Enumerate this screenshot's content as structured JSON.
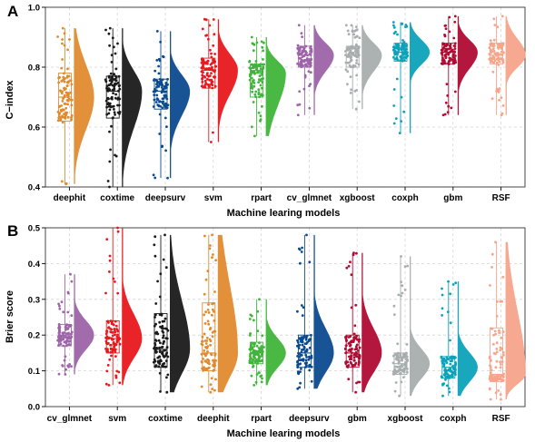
{
  "chart_data": [
    {
      "type": "raincloud",
      "panel_label": "A",
      "xlabel": "Machine learing models",
      "ylabel": "C−index",
      "ylim": [
        0.4,
        1.0
      ],
      "yticks": [
        0.4,
        0.6,
        0.8,
        1.0
      ],
      "ytick_labels": [
        "0.4",
        "0.6",
        "0.8",
        "1.0"
      ],
      "grid": true,
      "categories": [
        "deephit",
        "coxtime",
        "deepsurv",
        "svm",
        "rpart",
        "cv_glmnet",
        "xgboost",
        "coxph",
        "gbm",
        "RSF"
      ],
      "colors": [
        "#E08A2E",
        "#1A1A1A",
        "#0B4A8F",
        "#E8181E",
        "#3FB53A",
        "#9D64A8",
        "#A8ADAE",
        "#0CA2B9",
        "#B00B33",
        "#F6A48A"
      ],
      "series": [
        {
          "category": "deephit",
          "min": 0.41,
          "q1": 0.62,
          "median": 0.7,
          "q3": 0.78,
          "max": 0.93
        },
        {
          "category": "coxtime",
          "min": 0.4,
          "q1": 0.63,
          "median": 0.72,
          "q3": 0.77,
          "max": 0.93
        },
        {
          "category": "deepsurv",
          "min": 0.43,
          "q1": 0.66,
          "median": 0.72,
          "q3": 0.76,
          "max": 0.92
        },
        {
          "category": "svm",
          "min": 0.55,
          "q1": 0.73,
          "median": 0.79,
          "q3": 0.83,
          "max": 0.96
        },
        {
          "category": "rpart",
          "min": 0.57,
          "q1": 0.7,
          "median": 0.78,
          "q3": 0.81,
          "max": 0.9
        },
        {
          "category": "cv_glmnet",
          "min": 0.64,
          "q1": 0.8,
          "median": 0.84,
          "q3": 0.87,
          "max": 0.94
        },
        {
          "category": "xgboost",
          "min": 0.66,
          "q1": 0.8,
          "median": 0.84,
          "q3": 0.87,
          "max": 0.94
        },
        {
          "category": "coxph",
          "min": 0.58,
          "q1": 0.82,
          "median": 0.85,
          "q3": 0.88,
          "max": 0.95
        },
        {
          "category": "gbm",
          "min": 0.64,
          "q1": 0.81,
          "median": 0.85,
          "q3": 0.88,
          "max": 0.97
        },
        {
          "category": "RSF",
          "min": 0.64,
          "q1": 0.81,
          "median": 0.84,
          "q3": 0.88,
          "max": 0.97
        }
      ]
    },
    {
      "type": "raincloud",
      "panel_label": "B",
      "xlabel": "Machine learing models",
      "ylabel": "Brier score",
      "ylim": [
        0.0,
        0.5
      ],
      "yticks": [
        0.0,
        0.1,
        0.2,
        0.3,
        0.4,
        0.5
      ],
      "ytick_labels": [
        "0.0",
        "0.1",
        "0.2",
        "0.3",
        "0.4",
        "0.5"
      ],
      "grid": true,
      "categories": [
        "cv_glmnet",
        "svm",
        "coxtime",
        "deephit",
        "rpart",
        "deepsurv",
        "gbm",
        "xgboost",
        "coxph",
        "RSF"
      ],
      "colors": [
        "#9D64A8",
        "#E8181E",
        "#1A1A1A",
        "#E08A2E",
        "#3FB53A",
        "#0B4A8F",
        "#B00B33",
        "#A8ADAE",
        "#0CA2B9",
        "#F6A48A"
      ],
      "series": [
        {
          "category": "cv_glmnet",
          "min": 0.09,
          "q1": 0.17,
          "median": 0.2,
          "q3": 0.23,
          "max": 0.37
        },
        {
          "category": "svm",
          "min": 0.06,
          "q1": 0.15,
          "median": 0.19,
          "q3": 0.24,
          "max": 0.5
        },
        {
          "category": "coxtime",
          "min": 0.04,
          "q1": 0.11,
          "median": 0.16,
          "q3": 0.26,
          "max": 0.48
        },
        {
          "category": "deephit",
          "min": 0.04,
          "q1": 0.1,
          "median": 0.15,
          "q3": 0.29,
          "max": 0.48
        },
        {
          "category": "rpart",
          "min": 0.06,
          "q1": 0.12,
          "median": 0.15,
          "q3": 0.18,
          "max": 0.3
        },
        {
          "category": "deepsurv",
          "min": 0.05,
          "q1": 0.11,
          "median": 0.15,
          "q3": 0.2,
          "max": 0.48
        },
        {
          "category": "gbm",
          "min": 0.04,
          "q1": 0.11,
          "median": 0.15,
          "q3": 0.2,
          "max": 0.43
        },
        {
          "category": "xgboost",
          "min": 0.03,
          "q1": 0.09,
          "median": 0.12,
          "q3": 0.15,
          "max": 0.42
        },
        {
          "category": "coxph",
          "min": 0.03,
          "q1": 0.08,
          "median": 0.11,
          "q3": 0.14,
          "max": 0.35
        },
        {
          "category": "RSF",
          "min": 0.02,
          "q1": 0.07,
          "median": 0.09,
          "q3": 0.22,
          "max": 0.46
        }
      ]
    }
  ]
}
